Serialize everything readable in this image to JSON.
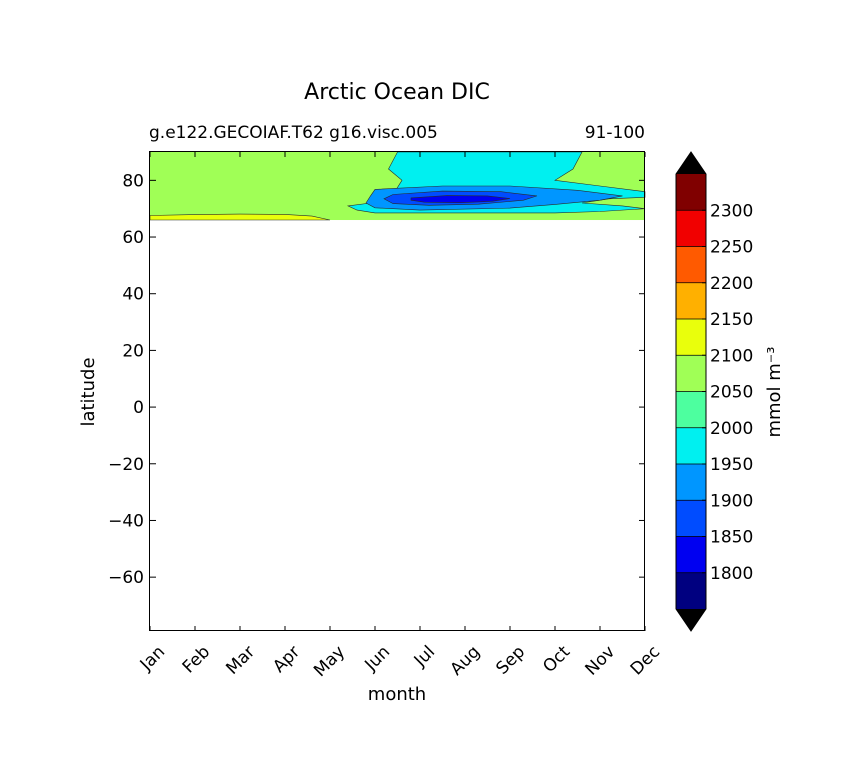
{
  "chart_data": {
    "type": "contour",
    "title": "Arctic Ocean DIC",
    "subtitle_left": "g.e122.GECOIAF.T62 g16.visc.005",
    "subtitle_right": "91-100",
    "xlabel": "month",
    "ylabel": "latitude",
    "x_categories": [
      "Jan",
      "Feb",
      "Mar",
      "Apr",
      "May",
      "Jun",
      "Jul",
      "Aug",
      "Sep",
      "Oct",
      "Nov",
      "Dec"
    ],
    "yticks": [
      80,
      60,
      40,
      20,
      0,
      -20,
      -40,
      -60
    ],
    "ylim": [
      -79,
      90
    ],
    "data_lat_range": [
      66,
      90
    ],
    "colorbar": {
      "label": "mmol m⁻³",
      "levels": [
        1750,
        1800,
        1850,
        1900,
        1950,
        2000,
        2050,
        2100,
        2150,
        2200,
        2250,
        2300,
        2350
      ],
      "tick_labels": [
        "1800",
        "1850",
        "1900",
        "1950",
        "2000",
        "2050",
        "2100",
        "2150",
        "2200",
        "2250",
        "2300"
      ],
      "colors": [
        "#000080",
        "#0000f1",
        "#004cff",
        "#0096ff",
        "#00f0f0",
        "#4dff9f",
        "#a0ff56",
        "#e9ff0c",
        "#ffb000",
        "#ff5a00",
        "#f10000",
        "#800000"
      ],
      "under_color": "#000000",
      "over_color": "#000000"
    },
    "regions": [
      {
        "name": "cyan",
        "value_band": [
          1950,
          2000
        ],
        "color": "#00f0f0",
        "points": [
          [
            5.5,
            90
          ],
          [
            9.6,
            90
          ],
          [
            9.4,
            84
          ],
          [
            9,
            80
          ],
          [
            10,
            78
          ],
          [
            11,
            76
          ],
          [
            11,
            74
          ],
          [
            10.2,
            73.5
          ],
          [
            9.6,
            72
          ],
          [
            10.5,
            71
          ],
          [
            11,
            70
          ],
          [
            10,
            69
          ],
          [
            9,
            68.5
          ],
          [
            5,
            68.5
          ],
          [
            4.6,
            69.5
          ],
          [
            4.4,
            71
          ],
          [
            4.9,
            72
          ],
          [
            5.4,
            75
          ],
          [
            5.6,
            80
          ],
          [
            5.3,
            84
          ]
        ]
      },
      {
        "name": "dodgerblue",
        "value_band": [
          1900,
          1950
        ],
        "color": "#0096ff",
        "points": [
          [
            5,
            76.8
          ],
          [
            6.5,
            78
          ],
          [
            8,
            78
          ],
          [
            9.5,
            76.5
          ],
          [
            10.5,
            74.5
          ],
          [
            10,
            73
          ],
          [
            9,
            71.5
          ],
          [
            8,
            70.2
          ],
          [
            6,
            69.5
          ],
          [
            5,
            70.3
          ],
          [
            4.8,
            72
          ],
          [
            4.9,
            74.5
          ]
        ]
      },
      {
        "name": "blue",
        "value_band": [
          1850,
          1900
        ],
        "color": "#004cff",
        "points": [
          [
            5.4,
            75
          ],
          [
            6.5,
            76.2
          ],
          [
            7.8,
            76
          ],
          [
            8.6,
            74.5
          ],
          [
            8.3,
            73
          ],
          [
            7.3,
            71.6
          ],
          [
            6.2,
            71.2
          ],
          [
            5.4,
            71.8
          ],
          [
            5.2,
            73.5
          ]
        ]
      },
      {
        "name": "mediumblue",
        "value_band": [
          1800,
          1850
        ],
        "color": "#0000f1",
        "points": [
          [
            5.8,
            73.8
          ],
          [
            6.6,
            74.6
          ],
          [
            7.5,
            74.5
          ],
          [
            8,
            73.6
          ],
          [
            7.6,
            72.6
          ],
          [
            6.9,
            72.1
          ],
          [
            6.1,
            72.3
          ],
          [
            5.8,
            73
          ]
        ]
      },
      {
        "name": "yellow",
        "value_band": [
          2100,
          2150
        ],
        "color": "#e9ff0c",
        "points": [
          [
            0,
            66
          ],
          [
            0,
            67.6
          ],
          [
            1,
            67.9
          ],
          [
            2,
            68.1
          ],
          [
            3,
            68
          ],
          [
            3.6,
            67.4
          ],
          [
            4,
            66
          ]
        ]
      }
    ]
  }
}
